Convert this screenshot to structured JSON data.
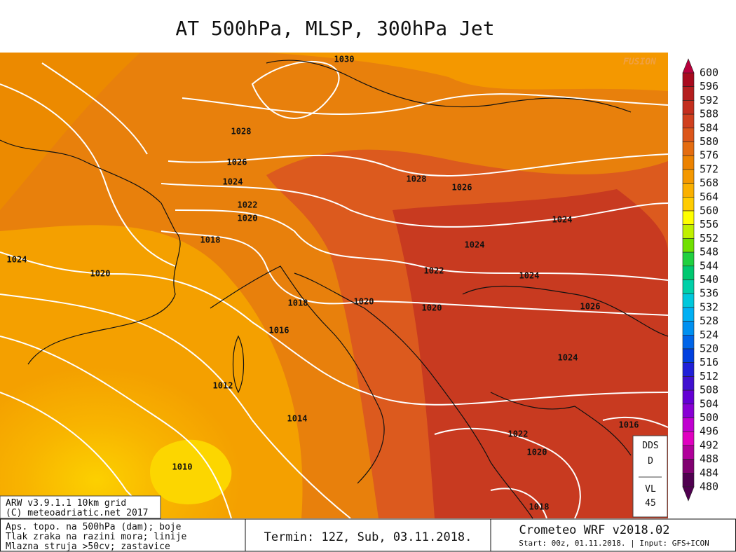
{
  "title": "AT 500hPa, MLSP, 300hPa Jet",
  "watermark": "FUSION",
  "colorbar": {
    "levels": [
      600,
      596,
      592,
      588,
      584,
      580,
      576,
      572,
      568,
      564,
      560,
      556,
      552,
      548,
      544,
      540,
      536,
      532,
      528,
      524,
      520,
      516,
      512,
      508,
      504,
      500,
      496,
      492,
      488,
      484,
      480
    ],
    "colors": [
      "#b8003c",
      "#a80a1e",
      "#b41e1e",
      "#c42e1e",
      "#d0401e",
      "#dc561a",
      "#e46c10",
      "#ec8200",
      "#f49800",
      "#fab000",
      "#ffcc00",
      "#ffff00",
      "#c0f000",
      "#70e000",
      "#20d040",
      "#00c870",
      "#00d0a8",
      "#00c8dc",
      "#00b0f4",
      "#0090f0",
      "#0064e8",
      "#0040e0",
      "#2020d8",
      "#4010d0",
      "#6400d4",
      "#8800d4",
      "#c000d0",
      "#e000c0",
      "#b0009a",
      "#800070",
      "#500050"
    ]
  },
  "isobar_labels": [
    "1030",
    "1028",
    "1026",
    "1024",
    "1022",
    "1020",
    "1018",
    "1024",
    "1020",
    "1018",
    "1016",
    "1012",
    "1014",
    "1010",
    "1028",
    "1026",
    "1024",
    "1024",
    "1022",
    "1024",
    "1020",
    "1020",
    "1026",
    "1024",
    "1016",
    "1022",
    "1020",
    "1018"
  ],
  "info_box": [
    "ARW v3.9.1.1 10km grid",
    "(C) meteoadriatic.net 2017"
  ],
  "side_box": [
    "DDS",
    "D",
    "VL",
    "45"
  ],
  "legend_lines": [
    "Aps. topo. na 500hPa (dam); boje",
    "Tlak zraka na razini mora; linije",
    "Mlazna struja >50cv; zastavice"
  ],
  "termin": "Termin: 12Z, Sub, 03.11.2018.",
  "brand": "Crometeo WRF v2018.02",
  "run_info": "Start: 00z, 01.11.2018. | Input: GFS+ICON"
}
